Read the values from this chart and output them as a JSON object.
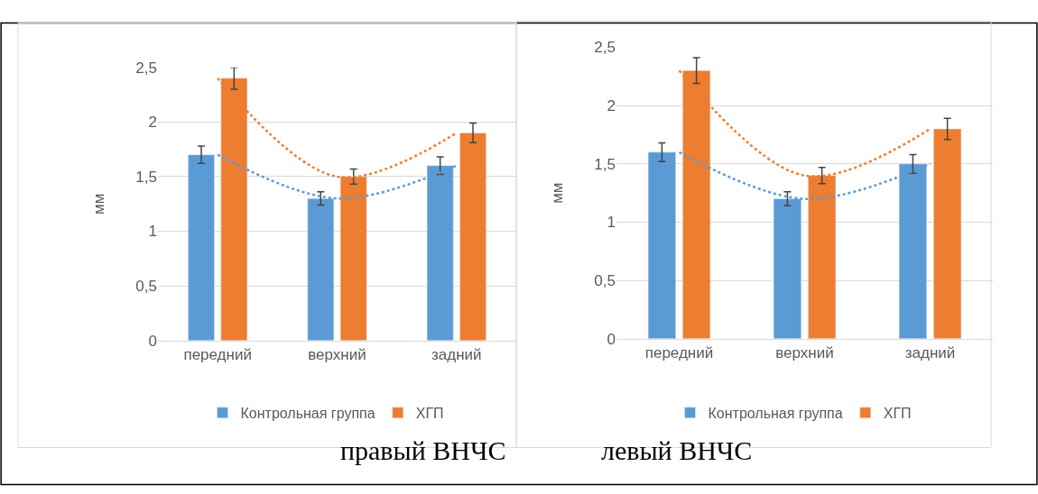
{
  "chart_data": [
    {
      "type": "bar",
      "title": "правый ВНЧС",
      "ylabel": "мм",
      "categories": [
        "передний",
        "верхний",
        "задний"
      ],
      "ylim": [
        0,
        2.5
      ],
      "yticks": [
        0,
        {
          "value": 0.5,
          "label": "0,5"
        },
        1,
        {
          "value": 1.5,
          "label": "1,5"
        },
        2,
        {
          "value": 2.5,
          "label": "2,5"
        }
      ],
      "grid": "y",
      "legend": "bottom",
      "series": [
        {
          "name": "Контрольная группа",
          "color": "#5b9bd5",
          "values": [
            1.7,
            1.3,
            1.6
          ],
          "errors": [
            0.08,
            0.06,
            0.08
          ]
        },
        {
          "name": "ХГП",
          "color": "#ed7d31",
          "values": [
            2.4,
            1.5,
            1.9
          ],
          "errors": [
            0.1,
            0.07,
            0.09
          ]
        },
        {
          "type": "line",
          "color": "#5b9bd5",
          "line_style": "dotted",
          "values": [
            1.7,
            1.3,
            1.6
          ]
        },
        {
          "type": "line",
          "color": "#ed7d31",
          "line_style": "dotted",
          "values": [
            2.4,
            1.5,
            1.9
          ]
        }
      ]
    },
    {
      "type": "bar",
      "title": "левый ВНЧС",
      "ylabel": "мм",
      "categories": [
        "передний",
        "верхний",
        "задний"
      ],
      "ylim": [
        0,
        2.5
      ],
      "yticks": [
        0,
        {
          "value": 0.5,
          "label": "0,5"
        },
        1,
        {
          "value": 1.5,
          "label": "1,5"
        },
        2,
        {
          "value": 2.5,
          "label": "2,5"
        }
      ],
      "grid": "y",
      "legend": "bottom",
      "series": [
        {
          "name": "Контрольная группа",
          "color": "#5b9bd5",
          "values": [
            1.6,
            1.2,
            1.5
          ],
          "errors": [
            0.08,
            0.06,
            0.08
          ]
        },
        {
          "name": "ХГП",
          "color": "#ed7d31",
          "values": [
            2.3,
            1.4,
            1.8
          ],
          "errors": [
            0.11,
            0.07,
            0.09
          ]
        },
        {
          "type": "line",
          "color": "#5b9bd5",
          "line_style": "dotted",
          "values": [
            1.6,
            1.2,
            1.5
          ]
        },
        {
          "type": "line",
          "color": "#ed7d31",
          "line_style": "dotted",
          "values": [
            2.3,
            1.4,
            1.8
          ]
        }
      ]
    }
  ]
}
